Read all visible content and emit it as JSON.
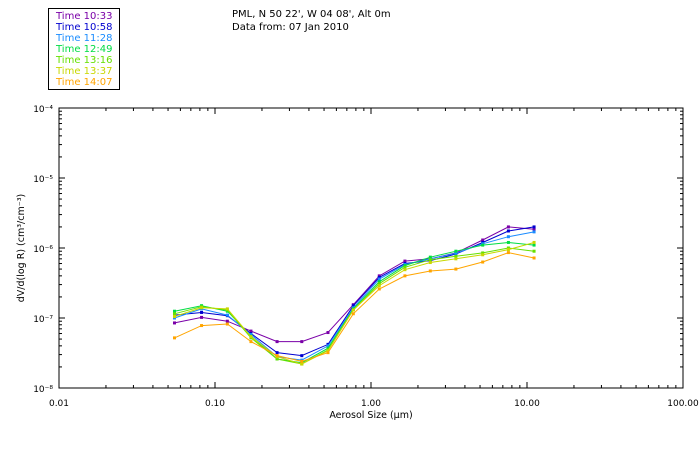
{
  "header": {
    "location": "PML, N 50 22', W 04 08', Alt 0m",
    "date": "Data from: 07 Jan 2010"
  },
  "chart_data": {
    "type": "line",
    "title": "PML, N 50 22', W 04 08', Alt 0m",
    "subtitle": "Data from: 07 Jan 2010",
    "xlabel": "Aerosol Size (μm)",
    "ylabel": "dV/d(log R) (cm³/cm⁻³)",
    "xscale": "log",
    "yscale": "log",
    "xlim": [
      0.01,
      100
    ],
    "ylim": [
      1e-08,
      0.0001
    ],
    "x_ticks": [
      "0.01",
      "0.10",
      "1.00",
      "10.00",
      "100.00"
    ],
    "y_ticks": [
      "10⁻⁸",
      "10⁻⁷",
      "10⁻⁶",
      "10⁻⁵",
      "10⁻⁴"
    ],
    "x": [
      0.055,
      0.082,
      0.12,
      0.17,
      0.25,
      0.36,
      0.53,
      0.77,
      1.13,
      1.65,
      2.4,
      3.5,
      5.2,
      7.6,
      11.1
    ],
    "series": [
      {
        "name": "Time 10:33",
        "color": "#7a00a8",
        "values": [
          8.5e-08,
          1.02e-07,
          9e-08,
          6.5e-08,
          4.6e-08,
          4.6e-08,
          6.2e-08,
          1.55e-07,
          4e-07,
          6.5e-07,
          7e-07,
          8.5e-07,
          1.3e-06,
          2e-06,
          1.85e-06
        ]
      },
      {
        "name": "Time 10:58",
        "color": "#0000d0",
        "values": [
          1.1e-07,
          1.2e-07,
          1.08e-07,
          6e-08,
          3.2e-08,
          2.9e-08,
          4.2e-08,
          1.5e-07,
          3.8e-07,
          6e-07,
          6.6e-07,
          8.2e-07,
          1.2e-06,
          1.75e-06,
          2e-06
        ]
      },
      {
        "name": "Time 11:28",
        "color": "#1a8cff",
        "values": [
          1e-07,
          1.35e-07,
          1.1e-07,
          5.8e-08,
          2.8e-08,
          2.5e-08,
          4e-08,
          1.4e-07,
          3.6e-07,
          5.8e-07,
          7e-07,
          8.4e-07,
          1.15e-06,
          1.45e-06,
          1.7e-06
        ]
      },
      {
        "name": "Time 12:49",
        "color": "#00dd44",
        "values": [
          1.25e-07,
          1.5e-07,
          1.25e-07,
          5.5e-08,
          2.6e-08,
          2.3e-08,
          3.7e-08,
          1.35e-07,
          3.3e-07,
          5.6e-07,
          7.4e-07,
          9e-07,
          1.1e-06,
          1.2e-06,
          1.1e-06
        ]
      },
      {
        "name": "Time 13:16",
        "color": "#66e000",
        "values": [
          1.15e-07,
          1.45e-07,
          1.3e-07,
          5.2e-08,
          2.6e-08,
          2.2e-08,
          3.5e-08,
          1.3e-07,
          3.1e-07,
          5.3e-07,
          6.8e-07,
          7.6e-07,
          8.5e-07,
          1e-06,
          9e-07
        ]
      },
      {
        "name": "Time 13:37",
        "color": "#c8d800",
        "values": [
          1.05e-07,
          1.4e-07,
          1.35e-07,
          5.4e-08,
          2.8e-08,
          2.2e-08,
          3.4e-08,
          1.3e-07,
          2.9e-07,
          4.9e-07,
          6.2e-07,
          7e-07,
          8e-07,
          9.5e-07,
          1.2e-06
        ]
      },
      {
        "name": "Time 14:07",
        "color": "#ffa500",
        "values": [
          5.2e-08,
          7.8e-08,
          8.2e-08,
          4.6e-08,
          2.9e-08,
          2.4e-08,
          3.2e-08,
          1.15e-07,
          2.6e-07,
          4e-07,
          4.7e-07,
          5e-07,
          6.3e-07,
          8.6e-07,
          7.2e-07
        ]
      }
    ]
  }
}
